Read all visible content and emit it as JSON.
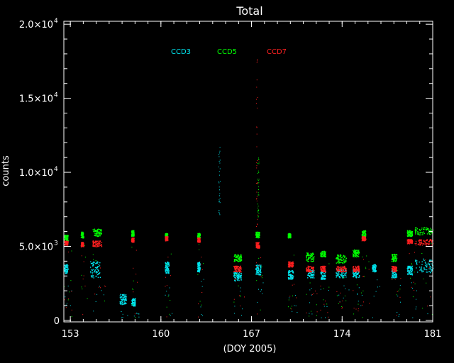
{
  "chart_data": {
    "type": "scatter",
    "title": "Total",
    "xlabel": "(DOY 2005)",
    "ylabel": "counts",
    "xlim": [
      152.5,
      181
    ],
    "ylim": [
      -100,
      20200
    ],
    "xticks": [
      {
        "value": 153,
        "label": "153"
      },
      {
        "value": 160,
        "label": "160"
      },
      {
        "value": 167,
        "label": "167"
      },
      {
        "value": 174,
        "label": "174"
      },
      {
        "value": 181,
        "label": "181"
      }
    ],
    "yticks": [
      {
        "value": 0,
        "label": "0",
        "sup": ""
      },
      {
        "value": 5000,
        "label": "5.0×10",
        "sup": "3"
      },
      {
        "value": 10000,
        "label": "1.0×10",
        "sup": "4"
      },
      {
        "value": 15000,
        "label": "1.5×10",
        "sup": "4"
      },
      {
        "value": 20000,
        "label": "2.0×10",
        "sup": "4"
      }
    ],
    "legend_placement": "top-center",
    "series": [
      {
        "name": "CCD3",
        "color": "#00e5ee",
        "clusters": [
          {
            "x": [
              152.5,
              152.8
            ],
            "y": [
              3200,
              3800
            ]
          },
          {
            "x": [
              154.5,
              155.3
            ],
            "y": [
              2900,
              4000
            ]
          },
          {
            "x": [
              156.8,
              157.3
            ],
            "y": [
              1100,
              1800
            ]
          },
          {
            "x": [
              157.7,
              158.0
            ],
            "y": [
              1000,
              1500
            ]
          },
          {
            "x": [
              160.3,
              160.6
            ],
            "y": [
              3200,
              4000
            ]
          },
          {
            "x": [
              162.8,
              163.0
            ],
            "y": [
              3300,
              4000
            ]
          },
          {
            "x": [
              165.6,
              166.2
            ],
            "y": [
              2700,
              3300
            ]
          },
          {
            "x": [
              167.3,
              167.7
            ],
            "y": [
              3100,
              3800
            ]
          },
          {
            "x": [
              169.8,
              170.2
            ],
            "y": [
              2800,
              3400
            ]
          },
          {
            "x": [
              171.3,
              171.8
            ],
            "y": [
              2900,
              3500
            ]
          },
          {
            "x": [
              172.3,
              172.7
            ],
            "y": [
              2800,
              3400
            ]
          },
          {
            "x": [
              173.5,
              174.3
            ],
            "y": [
              2900,
              3500
            ]
          },
          {
            "x": [
              174.8,
              175.3
            ],
            "y": [
              2900,
              3500
            ]
          },
          {
            "x": [
              176.3,
              176.6
            ],
            "y": [
              3300,
              3800
            ]
          },
          {
            "x": [
              177.8,
              178.2
            ],
            "y": [
              2900,
              3500
            ]
          },
          {
            "x": [
              179.0,
              179.4
            ],
            "y": [
              3100,
              3700
            ]
          },
          {
            "x": [
              179.6,
              181.0
            ],
            "y": [
              3200,
              4200
            ]
          }
        ]
      },
      {
        "name": "CCD5",
        "color": "#00ff00",
        "clusters": [
          {
            "x": [
              152.5,
              152.8
            ],
            "y": [
              5400,
              5800
            ]
          },
          {
            "x": [
              153.8,
              154.0
            ],
            "y": [
              5600,
              6000
            ]
          },
          {
            "x": [
              154.7,
              155.4
            ],
            "y": [
              5700,
              6200
            ]
          },
          {
            "x": [
              157.7,
              157.9
            ],
            "y": [
              5700,
              6100
            ]
          },
          {
            "x": [
              160.3,
              160.5
            ],
            "y": [
              5600,
              5900
            ]
          },
          {
            "x": [
              162.8,
              163.0
            ],
            "y": [
              5600,
              5900
            ]
          },
          {
            "x": [
              165.6,
              166.2
            ],
            "y": [
              4000,
              4500
            ]
          },
          {
            "x": [
              167.3,
              167.6
            ],
            "y": [
              5600,
              6000
            ]
          },
          {
            "x": [
              169.8,
              170.0
            ],
            "y": [
              5600,
              5900
            ]
          },
          {
            "x": [
              171.2,
              171.8
            ],
            "y": [
              4000,
              4600
            ]
          },
          {
            "x": [
              172.3,
              172.7
            ],
            "y": [
              4300,
              4700
            ]
          },
          {
            "x": [
              173.5,
              174.3
            ],
            "y": [
              3900,
              4500
            ]
          },
          {
            "x": [
              174.8,
              175.3
            ],
            "y": [
              4300,
              4800
            ]
          },
          {
            "x": [
              175.5,
              175.8
            ],
            "y": [
              5600,
              6100
            ]
          },
          {
            "x": [
              177.8,
              178.2
            ],
            "y": [
              4000,
              4500
            ]
          },
          {
            "x": [
              179.0,
              179.4
            ],
            "y": [
              5700,
              6100
            ]
          },
          {
            "x": [
              179.6,
              181.0
            ],
            "y": [
              5800,
              6300
            ]
          }
        ]
      },
      {
        "name": "CCD7",
        "color": "#ff2020",
        "clusters": [
          {
            "x": [
              152.5,
              152.8
            ],
            "y": [
              5100,
              5400
            ]
          },
          {
            "x": [
              153.8,
              154.0
            ],
            "y": [
              5000,
              5300
            ]
          },
          {
            "x": [
              154.7,
              155.4
            ],
            "y": [
              5000,
              5400
            ]
          },
          {
            "x": [
              157.7,
              157.9
            ],
            "y": [
              5300,
              5600
            ]
          },
          {
            "x": [
              160.3,
              160.5
            ],
            "y": [
              5400,
              5700
            ]
          },
          {
            "x": [
              162.8,
              163.0
            ],
            "y": [
              5300,
              5600
            ]
          },
          {
            "x": [
              165.6,
              166.2
            ],
            "y": [
              3300,
              3700
            ]
          },
          {
            "x": [
              167.3,
              167.6
            ],
            "y": [
              4900,
              5300
            ]
          },
          {
            "x": [
              169.8,
              170.2
            ],
            "y": [
              3600,
              4000
            ]
          },
          {
            "x": [
              171.2,
              171.8
            ],
            "y": [
              3300,
              3700
            ]
          },
          {
            "x": [
              172.3,
              172.7
            ],
            "y": [
              3300,
              3700
            ]
          },
          {
            "x": [
              173.5,
              174.3
            ],
            "y": [
              3300,
              3700
            ]
          },
          {
            "x": [
              174.8,
              175.3
            ],
            "y": [
              3300,
              3700
            ]
          },
          {
            "x": [
              175.5,
              175.8
            ],
            "y": [
              5400,
              5700
            ]
          },
          {
            "x": [
              177.8,
              178.2
            ],
            "y": [
              3300,
              3700
            ]
          },
          {
            "x": [
              179.0,
              179.4
            ],
            "y": [
              5200,
              5500
            ]
          },
          {
            "x": [
              179.6,
              181.0
            ],
            "y": [
              5100,
              5500
            ]
          }
        ]
      }
    ],
    "spikes": [
      {
        "x": 164.5,
        "y": [
          7000,
          11700
        ],
        "color": "#00e5ee"
      },
      {
        "x": 167.4,
        "y": [
          6000,
          17800
        ],
        "color": "#ff2020"
      },
      {
        "x": 167.5,
        "y": [
          7000,
          11000
        ],
        "color": "#00ff00"
      }
    ]
  }
}
